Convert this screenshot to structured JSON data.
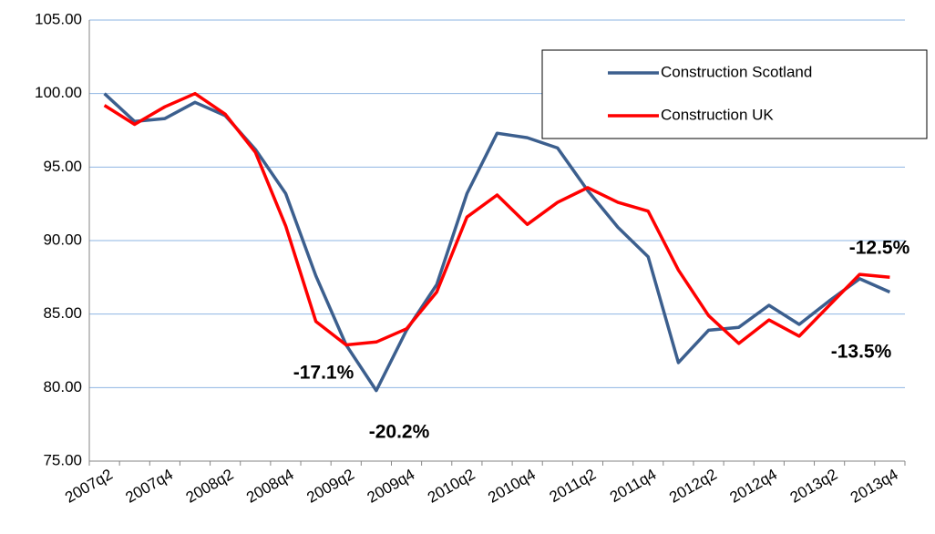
{
  "chart_data": {
    "type": "line",
    "categories": [
      "2007q2",
      null,
      "2007q4",
      null,
      "2008q2",
      null,
      "2008q4",
      null,
      "2009q2",
      null,
      "2009q4",
      null,
      "2010q2",
      null,
      "2010q4",
      null,
      "2011q2",
      null,
      "2011q4",
      null,
      "2012q2",
      null,
      "2012q4",
      null,
      "2013q2",
      null,
      "2013q4"
    ],
    "series": [
      {
        "name": "Construction Scotland",
        "color": "#3c5f8e",
        "values": [
          100.0,
          98.1,
          98.3,
          99.4,
          98.5,
          96.2,
          93.2,
          87.6,
          82.9,
          79.8,
          83.9,
          87.0,
          93.2,
          97.3,
          97.0,
          96.3,
          93.4,
          90.9,
          88.9,
          81.7,
          83.9,
          84.1,
          85.6,
          84.3,
          85.9,
          87.4,
          86.5
        ]
      },
      {
        "name": "Construction UK",
        "color": "#ff0000",
        "values": [
          99.2,
          97.9,
          99.1,
          100.0,
          98.6,
          96.0,
          91.0,
          84.5,
          82.9,
          83.1,
          84.0,
          86.5,
          91.6,
          93.1,
          91.1,
          92.6,
          93.6,
          92.6,
          92.0,
          88.0,
          84.9,
          83.0,
          84.6,
          83.5,
          85.6,
          87.7,
          87.5
        ]
      }
    ],
    "ylim": [
      75,
      105
    ],
    "yticks": [
      {
        "value": 75,
        "label": "75.00"
      },
      {
        "value": 80,
        "label": "80.00"
      },
      {
        "value": 85,
        "label": "85.00"
      },
      {
        "value": 90,
        "label": "90.00"
      },
      {
        "value": 95,
        "label": "95.00"
      },
      {
        "value": 100,
        "label": "100.00"
      },
      {
        "value": 105,
        "label": "105.00"
      }
    ],
    "grid": true,
    "legend": "upper right",
    "annotations": [
      "-17.1%",
      "-20.2%",
      "-12.5%",
      "-13.5%"
    ]
  }
}
